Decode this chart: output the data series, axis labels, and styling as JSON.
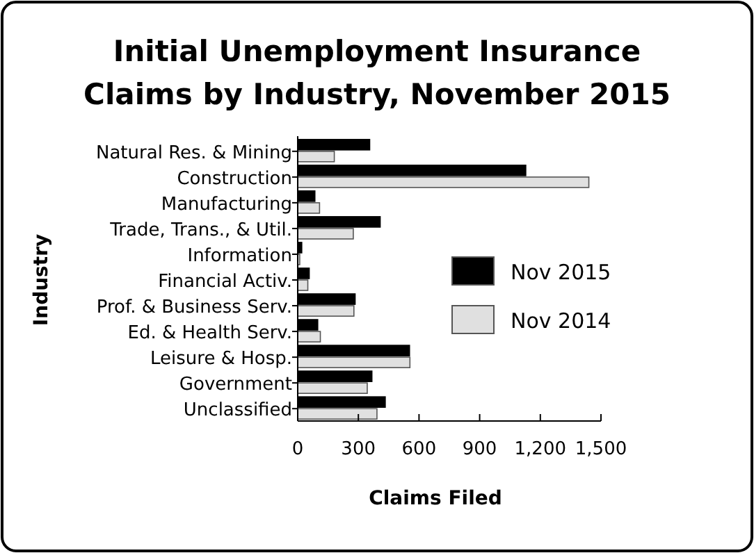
{
  "chart_data": {
    "type": "bar",
    "orientation": "horizontal",
    "title": "Initial Unemployment Insurance Claims by Industry, November 2015",
    "xlabel": "Claims Filed",
    "ylabel": "Industry",
    "categories": [
      "Natural Res. & Mining",
      "Construction",
      "Manufacturing",
      "Trade, Trans., & Util.",
      "Information",
      "Financial Activ.",
      "Prof. & Business Serv.",
      "Ed. & Health Serv.",
      "Leisure & Hosp.",
      "Government",
      "Unclassified"
    ],
    "series": [
      {
        "name": "Nov 2015",
        "color": "#000000",
        "values": [
          356,
          1128,
          85,
          408,
          20,
          57,
          284,
          99,
          553,
          367,
          433
        ]
      },
      {
        "name": "Nov 2014",
        "color": "#e0e0e0",
        "values": [
          181,
          1440,
          108,
          275,
          10,
          50,
          278,
          112,
          555,
          344,
          392
        ]
      }
    ],
    "xlim": [
      0,
      1500
    ],
    "xticks": [
      0,
      300,
      600,
      900,
      {
        "value": 1200,
        "label": "1,200"
      },
      {
        "value": 1500,
        "label": "1,500"
      }
    ],
    "legend": "right",
    "grid": false
  }
}
